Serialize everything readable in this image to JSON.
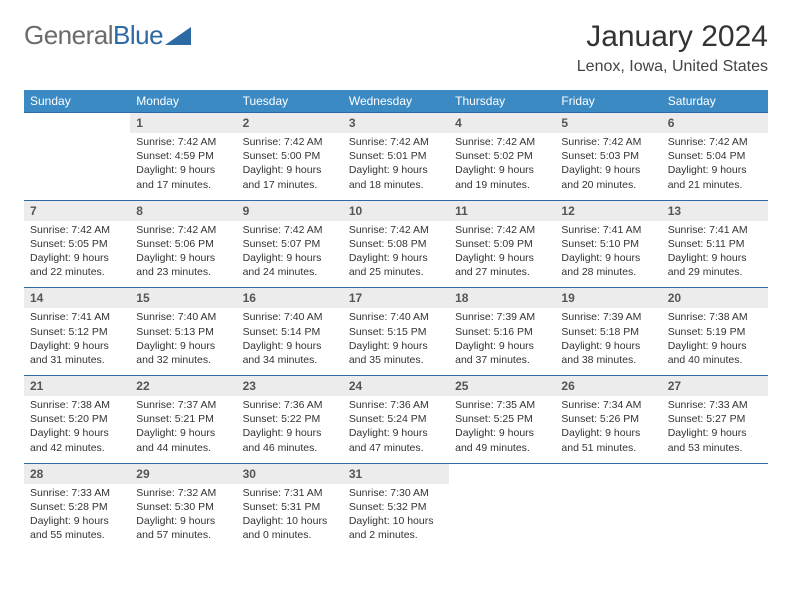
{
  "logo": {
    "part1": "General",
    "part2": "Blue"
  },
  "title": "January 2024",
  "location": "Lenox, Iowa, United States",
  "colors": {
    "header_bg": "#3b8ac4",
    "header_text": "#ffffff",
    "daynum_bg": "#ececec",
    "border": "#2d6aa3",
    "text": "#333333",
    "logo_gray": "#6b6b6b",
    "logo_blue": "#2d6aa3"
  },
  "weekdays": [
    "Sunday",
    "Monday",
    "Tuesday",
    "Wednesday",
    "Thursday",
    "Friday",
    "Saturday"
  ],
  "weeks": [
    [
      null,
      {
        "n": "1",
        "sr": "Sunrise: 7:42 AM",
        "ss": "Sunset: 4:59 PM",
        "d1": "Daylight: 9 hours",
        "d2": "and 17 minutes."
      },
      {
        "n": "2",
        "sr": "Sunrise: 7:42 AM",
        "ss": "Sunset: 5:00 PM",
        "d1": "Daylight: 9 hours",
        "d2": "and 17 minutes."
      },
      {
        "n": "3",
        "sr": "Sunrise: 7:42 AM",
        "ss": "Sunset: 5:01 PM",
        "d1": "Daylight: 9 hours",
        "d2": "and 18 minutes."
      },
      {
        "n": "4",
        "sr": "Sunrise: 7:42 AM",
        "ss": "Sunset: 5:02 PM",
        "d1": "Daylight: 9 hours",
        "d2": "and 19 minutes."
      },
      {
        "n": "5",
        "sr": "Sunrise: 7:42 AM",
        "ss": "Sunset: 5:03 PM",
        "d1": "Daylight: 9 hours",
        "d2": "and 20 minutes."
      },
      {
        "n": "6",
        "sr": "Sunrise: 7:42 AM",
        "ss": "Sunset: 5:04 PM",
        "d1": "Daylight: 9 hours",
        "d2": "and 21 minutes."
      }
    ],
    [
      {
        "n": "7",
        "sr": "Sunrise: 7:42 AM",
        "ss": "Sunset: 5:05 PM",
        "d1": "Daylight: 9 hours",
        "d2": "and 22 minutes."
      },
      {
        "n": "8",
        "sr": "Sunrise: 7:42 AM",
        "ss": "Sunset: 5:06 PM",
        "d1": "Daylight: 9 hours",
        "d2": "and 23 minutes."
      },
      {
        "n": "9",
        "sr": "Sunrise: 7:42 AM",
        "ss": "Sunset: 5:07 PM",
        "d1": "Daylight: 9 hours",
        "d2": "and 24 minutes."
      },
      {
        "n": "10",
        "sr": "Sunrise: 7:42 AM",
        "ss": "Sunset: 5:08 PM",
        "d1": "Daylight: 9 hours",
        "d2": "and 25 minutes."
      },
      {
        "n": "11",
        "sr": "Sunrise: 7:42 AM",
        "ss": "Sunset: 5:09 PM",
        "d1": "Daylight: 9 hours",
        "d2": "and 27 minutes."
      },
      {
        "n": "12",
        "sr": "Sunrise: 7:41 AM",
        "ss": "Sunset: 5:10 PM",
        "d1": "Daylight: 9 hours",
        "d2": "and 28 minutes."
      },
      {
        "n": "13",
        "sr": "Sunrise: 7:41 AM",
        "ss": "Sunset: 5:11 PM",
        "d1": "Daylight: 9 hours",
        "d2": "and 29 minutes."
      }
    ],
    [
      {
        "n": "14",
        "sr": "Sunrise: 7:41 AM",
        "ss": "Sunset: 5:12 PM",
        "d1": "Daylight: 9 hours",
        "d2": "and 31 minutes."
      },
      {
        "n": "15",
        "sr": "Sunrise: 7:40 AM",
        "ss": "Sunset: 5:13 PM",
        "d1": "Daylight: 9 hours",
        "d2": "and 32 minutes."
      },
      {
        "n": "16",
        "sr": "Sunrise: 7:40 AM",
        "ss": "Sunset: 5:14 PM",
        "d1": "Daylight: 9 hours",
        "d2": "and 34 minutes."
      },
      {
        "n": "17",
        "sr": "Sunrise: 7:40 AM",
        "ss": "Sunset: 5:15 PM",
        "d1": "Daylight: 9 hours",
        "d2": "and 35 minutes."
      },
      {
        "n": "18",
        "sr": "Sunrise: 7:39 AM",
        "ss": "Sunset: 5:16 PM",
        "d1": "Daylight: 9 hours",
        "d2": "and 37 minutes."
      },
      {
        "n": "19",
        "sr": "Sunrise: 7:39 AM",
        "ss": "Sunset: 5:18 PM",
        "d1": "Daylight: 9 hours",
        "d2": "and 38 minutes."
      },
      {
        "n": "20",
        "sr": "Sunrise: 7:38 AM",
        "ss": "Sunset: 5:19 PM",
        "d1": "Daylight: 9 hours",
        "d2": "and 40 minutes."
      }
    ],
    [
      {
        "n": "21",
        "sr": "Sunrise: 7:38 AM",
        "ss": "Sunset: 5:20 PM",
        "d1": "Daylight: 9 hours",
        "d2": "and 42 minutes."
      },
      {
        "n": "22",
        "sr": "Sunrise: 7:37 AM",
        "ss": "Sunset: 5:21 PM",
        "d1": "Daylight: 9 hours",
        "d2": "and 44 minutes."
      },
      {
        "n": "23",
        "sr": "Sunrise: 7:36 AM",
        "ss": "Sunset: 5:22 PM",
        "d1": "Daylight: 9 hours",
        "d2": "and 46 minutes."
      },
      {
        "n": "24",
        "sr": "Sunrise: 7:36 AM",
        "ss": "Sunset: 5:24 PM",
        "d1": "Daylight: 9 hours",
        "d2": "and 47 minutes."
      },
      {
        "n": "25",
        "sr": "Sunrise: 7:35 AM",
        "ss": "Sunset: 5:25 PM",
        "d1": "Daylight: 9 hours",
        "d2": "and 49 minutes."
      },
      {
        "n": "26",
        "sr": "Sunrise: 7:34 AM",
        "ss": "Sunset: 5:26 PM",
        "d1": "Daylight: 9 hours",
        "d2": "and 51 minutes."
      },
      {
        "n": "27",
        "sr": "Sunrise: 7:33 AM",
        "ss": "Sunset: 5:27 PM",
        "d1": "Daylight: 9 hours",
        "d2": "and 53 minutes."
      }
    ],
    [
      {
        "n": "28",
        "sr": "Sunrise: 7:33 AM",
        "ss": "Sunset: 5:28 PM",
        "d1": "Daylight: 9 hours",
        "d2": "and 55 minutes."
      },
      {
        "n": "29",
        "sr": "Sunrise: 7:32 AM",
        "ss": "Sunset: 5:30 PM",
        "d1": "Daylight: 9 hours",
        "d2": "and 57 minutes."
      },
      {
        "n": "30",
        "sr": "Sunrise: 7:31 AM",
        "ss": "Sunset: 5:31 PM",
        "d1": "Daylight: 10 hours",
        "d2": "and 0 minutes."
      },
      {
        "n": "31",
        "sr": "Sunrise: 7:30 AM",
        "ss": "Sunset: 5:32 PM",
        "d1": "Daylight: 10 hours",
        "d2": "and 2 minutes."
      },
      null,
      null,
      null
    ]
  ]
}
